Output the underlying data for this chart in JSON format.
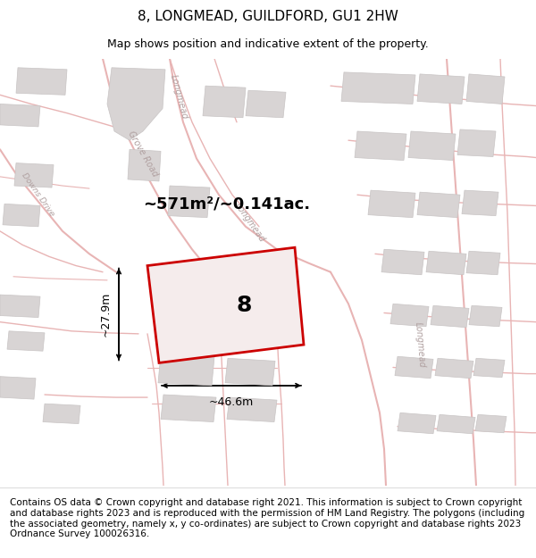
{
  "title": "8, LONGMEAD, GUILDFORD, GU1 2HW",
  "subtitle": "Map shows position and indicative extent of the property.",
  "footer": "Contains OS data © Crown copyright and database right 2021. This information is subject to Crown copyright and database rights 2023 and is reproduced with the permission of HM Land Registry. The polygons (including the associated geometry, namely x, y co-ordinates) are subject to Crown copyright and database rights 2023 Ordnance Survey 100026316.",
  "area_text": "~571m²/~0.141ac.",
  "width_label": "~46.6m",
  "height_label": "~27.9m",
  "property_number": "8",
  "map_bg": "#f7f4f4",
  "road_color": "#e8b4b4",
  "road_fill": "#f0e8e8",
  "building_color": "#d8d4d4",
  "building_edge": "#c8c4c4",
  "property_fill": "#f5ecec",
  "property_edge": "#cc0000",
  "title_fontsize": 11,
  "subtitle_fontsize": 9,
  "footer_fontsize": 7.5,
  "road_label_color": "#b0a0a0",
  "road_lw_outer": 2.0,
  "road_lw_inner": 0.5
}
